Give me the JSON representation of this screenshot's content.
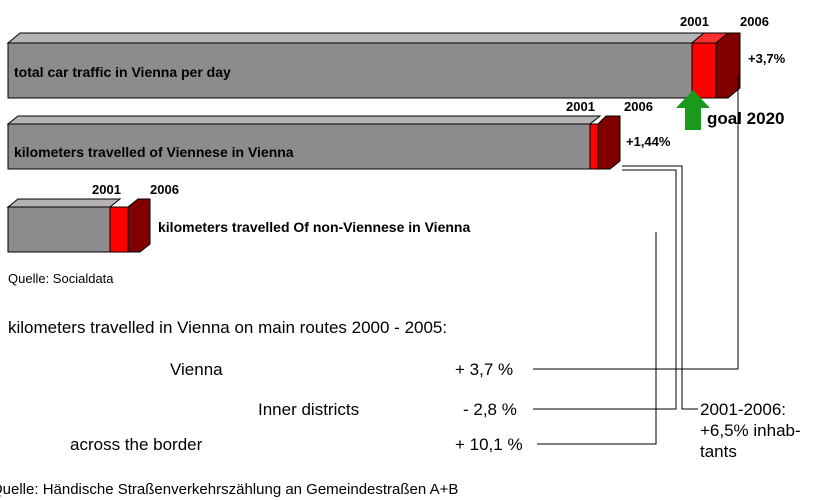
{
  "bars": [
    {
      "label": "total car traffic in Vienna per day",
      "year_start": "2001",
      "year_end": "2006",
      "change": "+3,7%"
    },
    {
      "label": "kilometers travelled of Viennese in Vienna",
      "year_start": "2001",
      "year_end": "2006",
      "change": "+1,44%"
    },
    {
      "label": "kilometers travelled Of non-Viennese in Vienna",
      "year_start": "2001",
      "year_end": "2006"
    }
  ],
  "goal": "goal 2020",
  "source_1": "Quelle: Socialdata",
  "routes": {
    "title": "kilometers travelled in Vienna on main routes 2000 - 2005:",
    "rows": [
      {
        "label": "Vienna",
        "value": "+ 3,7 %"
      },
      {
        "label": "Inner districts",
        "value": "- 2,8 %"
      },
      {
        "label": "across the border",
        "value": "+ 10,1 %"
      }
    ]
  },
  "inhabitants_note": [
    "2001-2006:",
    "+6,5% inhab-",
    "tants"
  ],
  "source_2": "Quelle: Händische Straßenverkehrszählung an Gemeindestraßen A+B"
}
